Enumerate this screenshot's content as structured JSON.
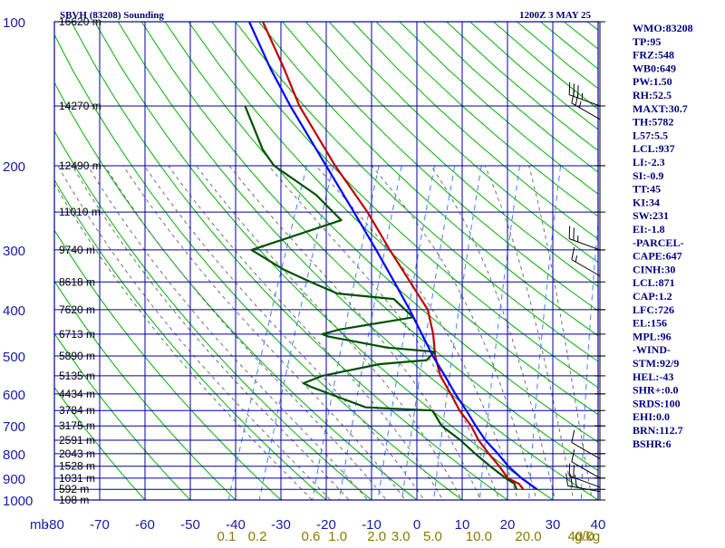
{
  "header": {
    "station": "SBVH (83208) Sounding",
    "time": "1200Z  3 MAY 25"
  },
  "indices": [
    "WMO:83208",
    "TP:95",
    "FRZ:548",
    "WB0:649",
    "PW:1.50",
    "RH:52.5",
    "MAXT:30.7",
    "TH:5782",
    "L57:5.5",
    "LCL:937",
    "LI:-2.3",
    "SI:-0.9",
    "TT:45",
    "KI:34",
    "SW:231",
    "EI:-1.8",
    "-PARCEL-",
    "CAPE:647",
    "CINH:30",
    "LCL:871",
    "CAP:1.2",
    "LFC:726",
    "EL:156",
    "MPL:96",
    "-WIND-",
    "STM:92/9",
    "HEL:-43",
    "SHR+:0.0",
    "SRDS:100",
    "EHI:0.0",
    "BRN:112.7",
    "BSHR:6"
  ],
  "colors": {
    "grid": "#0000a0",
    "temperature": "#c00000",
    "dewpoint": "#005000",
    "parcel": "#0000ff",
    "dry_adiabat": "#00b000",
    "moist_adiabat": "#707070",
    "mixing_ratio": "#4080ff"
  },
  "chart_data": {
    "type": "line",
    "title": "SBVH (83208) Sounding",
    "x_units_label": "mb",
    "temp_ticks": [
      -80,
      -70,
      -60,
      -50,
      -40,
      -30,
      -20,
      -10,
      0,
      10,
      20,
      30,
      40
    ],
    "pressure_ticks": [
      100,
      200,
      300,
      400,
      500,
      600,
      700,
      800,
      900,
      1000
    ],
    "pressure_tick_labels": [
      "100",
      "200",
      "300",
      "400",
      "500",
      "600",
      "700",
      "800",
      "900",
      "1000"
    ],
    "temp_tick_labels": [
      "-80",
      "-70",
      "-60",
      "-50",
      "-40",
      "-30",
      "-20",
      "-10",
      "0",
      "10",
      "20",
      "30",
      "40"
    ],
    "mixing_ratio_labels": [
      "0.1",
      "0.2",
      "0.6",
      "1.0",
      "2.0",
      "3.0",
      "5.0",
      "10.0",
      "20.0",
      "40.0",
      "g/kg"
    ],
    "mixing_ratio_values": [
      0.1,
      0.2,
      0.6,
      1.0,
      2.0,
      3.0,
      5.0,
      10.0,
      20.0,
      40.0
    ],
    "height_labels": [
      {
        "p": 100,
        "label": "16620 m"
      },
      {
        "p": 150,
        "label": "14270 m"
      },
      {
        "p": 200,
        "label": "12490 m"
      },
      {
        "p": 250,
        "label": "11010 m"
      },
      {
        "p": 300,
        "label": "9740 m"
      },
      {
        "p": 350,
        "label": "8618 m"
      },
      {
        "p": 400,
        "label": "7620 m"
      },
      {
        "p": 450,
        "label": "6713 m"
      },
      {
        "p": 500,
        "label": "5890 m"
      },
      {
        "p": 550,
        "label": "5135 m"
      },
      {
        "p": 600,
        "label": "4434 m"
      },
      {
        "p": 650,
        "label": "3784 m"
      },
      {
        "p": 700,
        "label": "3175 m"
      },
      {
        "p": 750,
        "label": "2591 m"
      },
      {
        "p": 800,
        "label": "2043 m"
      },
      {
        "p": 850,
        "label": "1528 m"
      },
      {
        "p": 900,
        "label": "1031 m"
      },
      {
        "p": 950,
        "label": "592 m"
      },
      {
        "p": 1000,
        "label": "108 m"
      }
    ],
    "xlim": [
      -80,
      40
    ],
    "ylim": [
      1000,
      100
    ],
    "yscale": "log",
    "grid": true,
    "series": [
      {
        "key": "temperature",
        "points": [
          [
            950,
            22.5
          ],
          [
            925,
            21
          ],
          [
            900,
            18
          ],
          [
            850,
            15
          ],
          [
            800,
            11.5
          ],
          [
            750,
            8
          ],
          [
            700,
            5
          ],
          [
            650,
            1
          ],
          [
            600,
            -2.5
          ],
          [
            550,
            -6.5
          ],
          [
            500,
            -9.5
          ],
          [
            450,
            -12
          ],
          [
            400,
            -15.5
          ],
          [
            350,
            -22
          ],
          [
            300,
            -29.5
          ],
          [
            250,
            -38
          ],
          [
            200,
            -49.5
          ],
          [
            150,
            -63
          ],
          [
            125,
            -70
          ],
          [
            100,
            -79
          ]
        ]
      },
      {
        "key": "dewpoint",
        "points": [
          [
            950,
            21
          ],
          [
            925,
            20
          ],
          [
            900,
            17.5
          ],
          [
            850,
            13
          ],
          [
            800,
            8.5
          ],
          [
            750,
            4
          ],
          [
            700,
            -1.5
          ],
          [
            650,
            -5
          ],
          [
            640,
            -20
          ],
          [
            580,
            -34
          ],
          [
            570,
            -36
          ],
          [
            550,
            -32.5
          ],
          [
            520,
            -21
          ],
          [
            510,
            -11
          ],
          [
            490,
            -10
          ],
          [
            480,
            -21
          ],
          [
            455,
            -35
          ],
          [
            450,
            -36.5
          ],
          [
            440,
            -33
          ],
          [
            415,
            -18
          ],
          [
            380,
            -24
          ],
          [
            370,
            -37
          ],
          [
            350,
            -44
          ],
          [
            330,
            -51
          ],
          [
            300,
            -60
          ],
          [
            260,
            -43
          ],
          [
            230,
            -51
          ],
          [
            200,
            -63
          ],
          [
            185,
            -67
          ],
          [
            150,
            -75
          ]
        ]
      },
      {
        "key": "parcel",
        "points": [
          [
            950,
            25.5
          ],
          [
            900,
            21
          ],
          [
            850,
            17
          ],
          [
            800,
            13.5
          ],
          [
            750,
            9.5
          ],
          [
            700,
            6
          ],
          [
            650,
            2.5
          ],
          [
            600,
            -1.5
          ],
          [
            550,
            -5.5
          ],
          [
            500,
            -10
          ],
          [
            450,
            -14.5
          ],
          [
            400,
            -19.5
          ],
          [
            350,
            -25.5
          ],
          [
            300,
            -32.5
          ],
          [
            250,
            -41
          ],
          [
            200,
            -51.5
          ],
          [
            150,
            -65
          ],
          [
            125,
            -73
          ],
          [
            100,
            -82
          ]
        ]
      }
    ],
    "winds": [
      {
        "p": 150,
        "dir": 290,
        "spd": 35
      },
      {
        "p": 160,
        "dir": 300,
        "spd": 25
      },
      {
        "p": 300,
        "dir": 290,
        "spd": 25
      },
      {
        "p": 340,
        "dir": 300,
        "spd": 15
      },
      {
        "p": 820,
        "dir": 300,
        "spd": 10
      },
      {
        "p": 900,
        "dir": 300,
        "spd": 10
      },
      {
        "p": 940,
        "dir": 290,
        "spd": 20
      },
      {
        "p": 960,
        "dir": 280,
        "spd": 30
      }
    ]
  }
}
